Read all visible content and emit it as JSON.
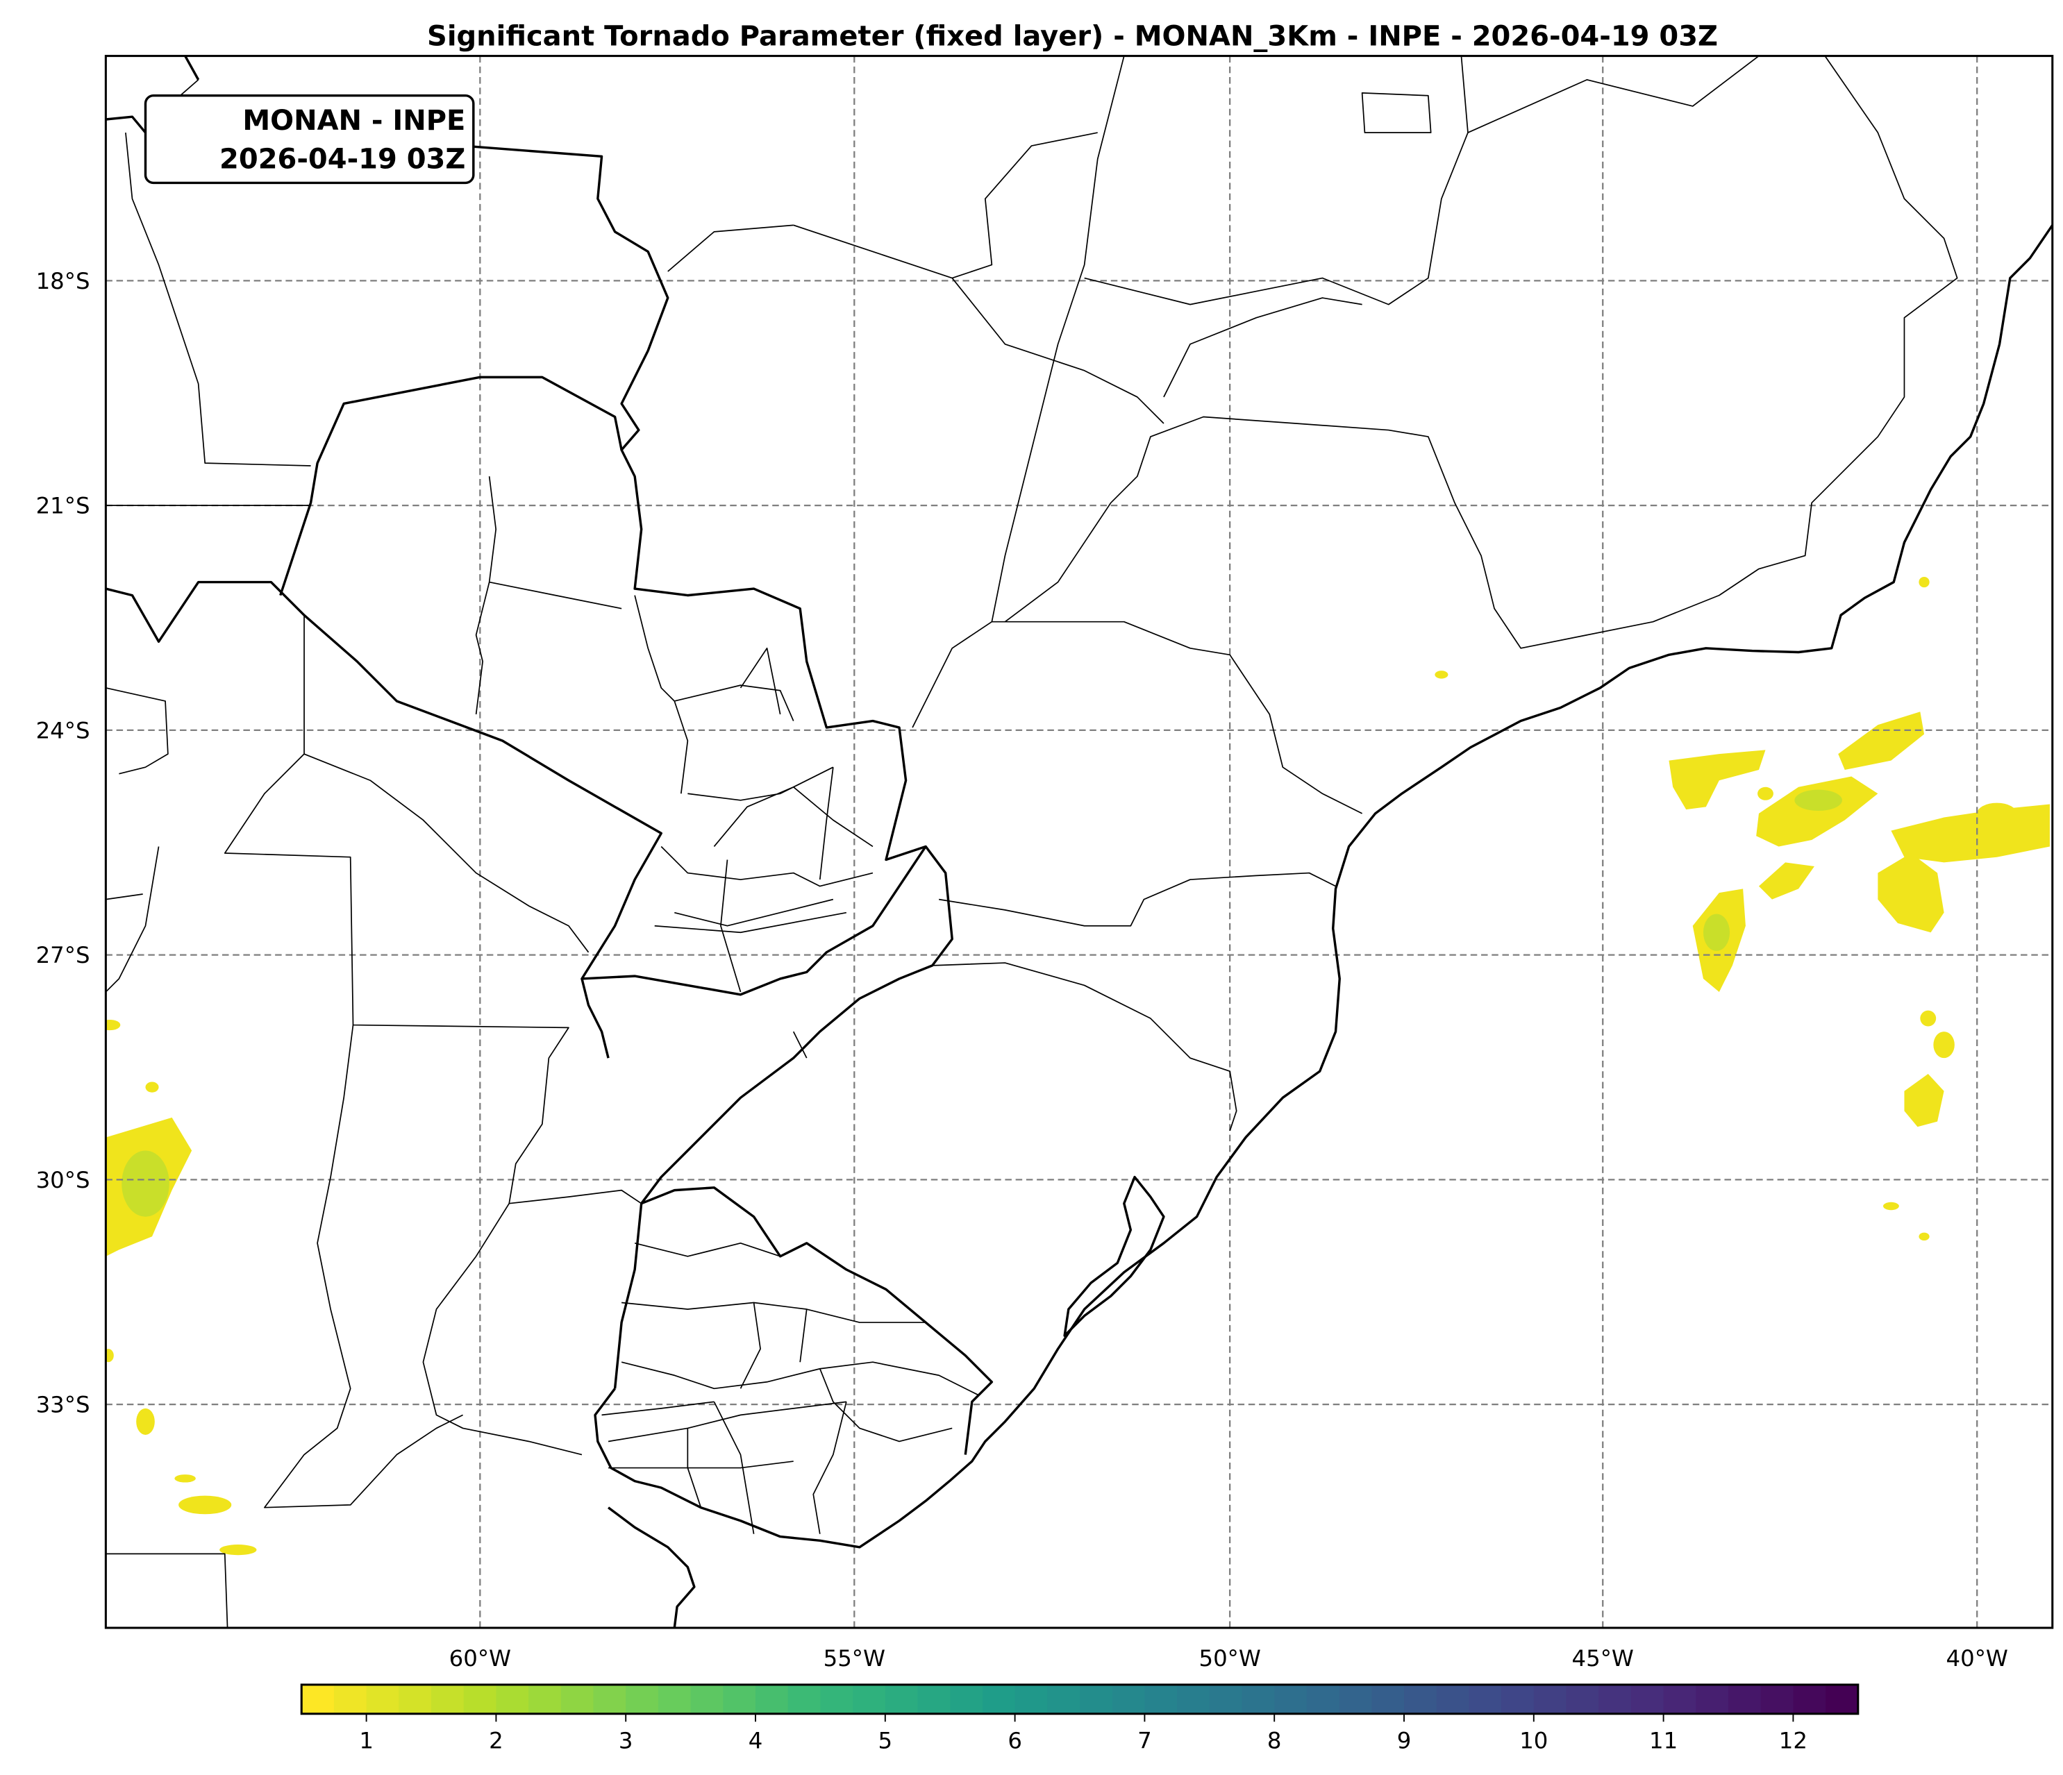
{
  "title": "Significant Tornado Parameter (fixed layer) - MONAN_3Km - INPE - 2026-04-19 03Z",
  "info_box": {
    "line1": "MONAN - INPE",
    "line2": "2026-04-19 03Z"
  },
  "lon_ticks": [
    "60°W",
    "55°W",
    "50°W",
    "45°W",
    "40°W"
  ],
  "lat_ticks": [
    "18°S",
    "21°S",
    "24°S",
    "27°S",
    "30°S",
    "33°S"
  ],
  "colorbar": {
    "ticks": [
      "1",
      "2",
      "3",
      "4",
      "5",
      "6",
      "7",
      "8",
      "9",
      "10",
      "11",
      "12"
    ],
    "colormap": "viridis_r",
    "min": 0.5,
    "max": 12.5,
    "step": 0.25
  },
  "colors": {
    "low_value": "#fde725",
    "high_value": "#440154",
    "grid": "#7f7f7f"
  }
}
